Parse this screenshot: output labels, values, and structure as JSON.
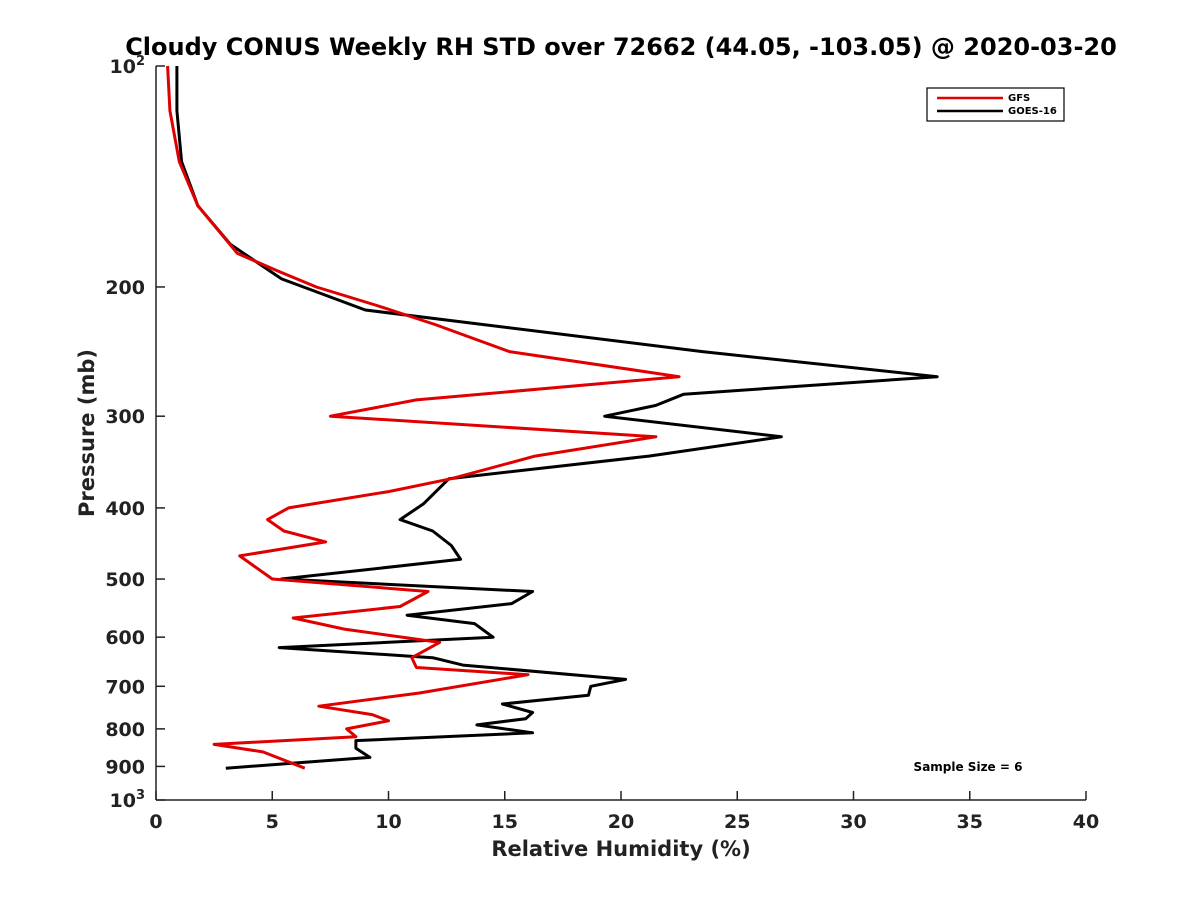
{
  "chart_data": {
    "type": "line",
    "title": "Cloudy CONUS Weekly RH STD over 72662 (44.05, -103.05) @ 2020-03-20",
    "xlabel": "Relative Humidity (%)",
    "ylabel": "Pressure (mb)",
    "xlim": [
      0,
      40
    ],
    "ylim": [
      100,
      1000
    ],
    "y_scale": "log",
    "y_reversed": true,
    "grid": false,
    "legend_position": "top-right",
    "x_ticks": [
      "0",
      "5",
      "10",
      "15",
      "20",
      "25",
      "30",
      "35",
      "40"
    ],
    "y_ticks": [
      {
        "value": 100,
        "base": "10",
        "exp": "2"
      },
      {
        "value": 200,
        "label": "200"
      },
      {
        "value": 300,
        "label": "300"
      },
      {
        "value": 400,
        "label": "400"
      },
      {
        "value": 500,
        "label": "500"
      },
      {
        "value": 600,
        "label": "600"
      },
      {
        "value": 700,
        "label": "700"
      },
      {
        "value": 800,
        "label": "800"
      },
      {
        "value": 900,
        "label": "900"
      },
      {
        "value": 1000,
        "base": "10",
        "exp": "3"
      }
    ],
    "series": [
      {
        "name": "GFS",
        "color": "#e00000",
        "points": [
          [
            0.5,
            100
          ],
          [
            0.6,
            115
          ],
          [
            1.0,
            135
          ],
          [
            1.8,
            155
          ],
          [
            3.5,
            180
          ],
          [
            5.2,
            190
          ],
          [
            6.9,
            200
          ],
          [
            9.5,
            212
          ],
          [
            12.0,
            225
          ],
          [
            15.2,
            245
          ],
          [
            22.5,
            265
          ],
          [
            11.2,
            285
          ],
          [
            7.5,
            300
          ],
          [
            21.5,
            320
          ],
          [
            16.3,
            340
          ],
          [
            12.7,
            365
          ],
          [
            10.0,
            380
          ],
          [
            5.7,
            400
          ],
          [
            4.8,
            415
          ],
          [
            5.5,
            430
          ],
          [
            7.3,
            445
          ],
          [
            3.6,
            465
          ],
          [
            5.0,
            500
          ],
          [
            11.7,
            520
          ],
          [
            10.5,
            545
          ],
          [
            5.9,
            565
          ],
          [
            8.1,
            585
          ],
          [
            12.2,
            610
          ],
          [
            11.0,
            640
          ],
          [
            11.2,
            660
          ],
          [
            16.0,
            675
          ],
          [
            11.3,
            715
          ],
          [
            7.0,
            745
          ],
          [
            9.3,
            765
          ],
          [
            10.0,
            780
          ],
          [
            8.2,
            800
          ],
          [
            8.6,
            820
          ],
          [
            2.5,
            840
          ],
          [
            4.6,
            860
          ],
          [
            6.4,
            905
          ]
        ]
      },
      {
        "name": "GOES-16",
        "color": "#000000",
        "points": [
          [
            0.9,
            100
          ],
          [
            0.9,
            115
          ],
          [
            1.1,
            135
          ],
          [
            1.8,
            155
          ],
          [
            3.2,
            175
          ],
          [
            5.4,
            195
          ],
          [
            9.0,
            215
          ],
          [
            23.5,
            245
          ],
          [
            33.6,
            265
          ],
          [
            22.7,
            280
          ],
          [
            21.5,
            290
          ],
          [
            19.3,
            300
          ],
          [
            26.9,
            320
          ],
          [
            21.2,
            340
          ],
          [
            12.6,
            365
          ],
          [
            11.5,
            395
          ],
          [
            10.5,
            415
          ],
          [
            11.9,
            430
          ],
          [
            12.7,
            450
          ],
          [
            13.1,
            470
          ],
          [
            5.4,
            500
          ],
          [
            16.2,
            520
          ],
          [
            15.3,
            540
          ],
          [
            10.8,
            560
          ],
          [
            13.7,
            575
          ],
          [
            14.5,
            600
          ],
          [
            5.3,
            620
          ],
          [
            11.9,
            640
          ],
          [
            13.2,
            655
          ],
          [
            20.2,
            685
          ],
          [
            18.7,
            700
          ],
          [
            18.6,
            720
          ],
          [
            14.9,
            740
          ],
          [
            16.2,
            760
          ],
          [
            15.9,
            775
          ],
          [
            13.8,
            790
          ],
          [
            16.2,
            810
          ],
          [
            8.6,
            830
          ],
          [
            8.6,
            850
          ],
          [
            9.2,
            875
          ],
          [
            3.0,
            905
          ]
        ]
      }
    ],
    "annotation": "Sample Size = 6"
  }
}
